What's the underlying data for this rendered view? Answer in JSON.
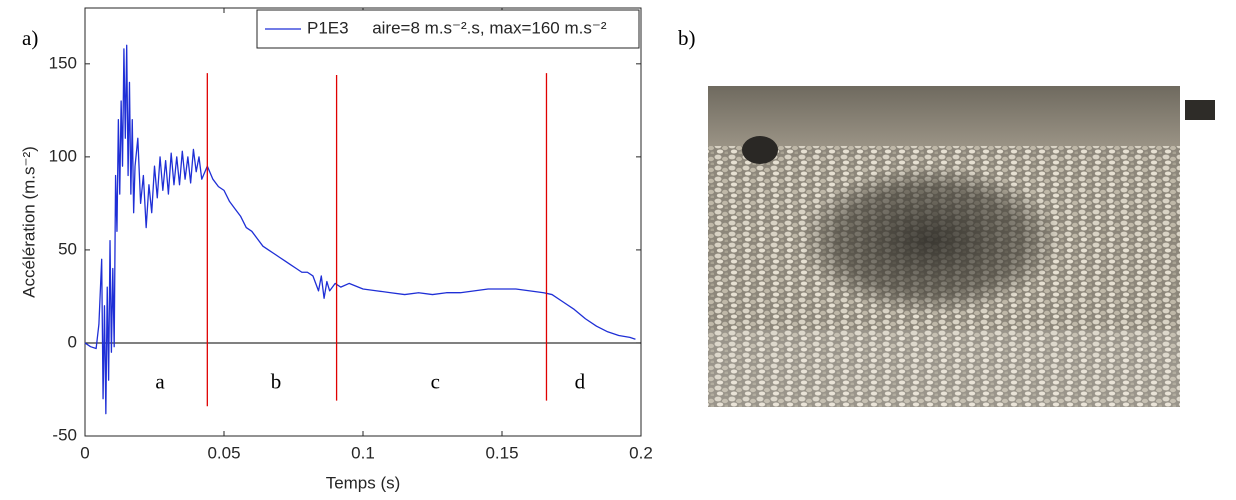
{
  "chart_data": {
    "type": "line",
    "panel_label": "a)",
    "x_label": "Temps (s)",
    "y_label": "Accélération (m.s⁻²)",
    "xlim": [
      0,
      0.2
    ],
    "xticks": [
      0,
      0.05,
      0.1,
      0.15,
      0.2
    ],
    "ylim": [
      -50,
      180
    ],
    "yticks": [
      -50,
      0,
      50,
      100,
      150
    ],
    "legend": "top-right",
    "series": [
      {
        "name": "P1E3     aire=8 m.s⁻².s, max=160 m.s⁻²",
        "color": "#1f2fd6",
        "x": [
          0,
          0.002,
          0.004,
          0.005,
          0.006,
          0.0065,
          0.007,
          0.0075,
          0.008,
          0.0085,
          0.009,
          0.0095,
          0.01,
          0.0105,
          0.011,
          0.0115,
          0.012,
          0.0125,
          0.013,
          0.0135,
          0.014,
          0.0145,
          0.015,
          0.0155,
          0.016,
          0.0165,
          0.017,
          0.0175,
          0.018,
          0.019,
          0.02,
          0.021,
          0.022,
          0.023,
          0.024,
          0.025,
          0.026,
          0.027,
          0.028,
          0.029,
          0.03,
          0.031,
          0.032,
          0.033,
          0.034,
          0.035,
          0.036,
          0.037,
          0.038,
          0.039,
          0.04,
          0.041,
          0.042,
          0.044,
          0.046,
          0.048,
          0.05,
          0.052,
          0.054,
          0.056,
          0.058,
          0.06,
          0.062,
          0.064,
          0.066,
          0.068,
          0.07,
          0.072,
          0.074,
          0.076,
          0.078,
          0.08,
          0.082,
          0.084,
          0.085,
          0.086,
          0.087,
          0.088,
          0.09,
          0.092,
          0.095,
          0.1,
          0.105,
          0.11,
          0.115,
          0.12,
          0.125,
          0.13,
          0.135,
          0.14,
          0.145,
          0.15,
          0.155,
          0.16,
          0.165,
          0.168,
          0.172,
          0.176,
          0.18,
          0.184,
          0.188,
          0.192,
          0.196,
          0.198
        ],
        "values": [
          0,
          -2,
          -3,
          10,
          45,
          -30,
          20,
          -38,
          30,
          -20,
          55,
          -5,
          40,
          -2,
          90,
          60,
          120,
          80,
          130,
          95,
          158,
          110,
          160,
          90,
          140,
          80,
          120,
          70,
          95,
          110,
          75,
          90,
          62,
          85,
          70,
          95,
          78,
          100,
          82,
          98,
          80,
          102,
          85,
          100,
          85,
          103,
          88,
          100,
          86,
          104,
          92,
          100,
          88,
          95,
          88,
          84,
          82,
          76,
          72,
          68,
          62,
          60,
          56,
          52,
          50,
          48,
          46,
          44,
          42,
          40,
          38,
          38,
          36,
          28,
          36,
          24,
          33,
          28,
          32,
          30,
          32,
          29,
          28,
          27,
          26,
          27,
          26,
          27,
          27,
          28,
          29,
          29,
          29,
          28,
          27,
          26,
          22,
          18,
          13,
          9,
          6,
          4,
          3,
          2
        ]
      }
    ],
    "vlines": [
      {
        "color": "#e00000",
        "x": 0.044,
        "y0": -34,
        "y1": 145
      },
      {
        "color": "#e00000",
        "x": 0.0905,
        "y0": -31,
        "y1": 144
      },
      {
        "color": "#e00000",
        "x": 0.166,
        "y0": -31,
        "y1": 145
      }
    ],
    "annotations": [
      {
        "text": "a",
        "x": 0.027,
        "y": -22
      },
      {
        "text": "b",
        "x": 0.0687,
        "y": -22
      },
      {
        "text": "c",
        "x": 0.126,
        "y": -22
      },
      {
        "text": "d",
        "x": 0.178,
        "y": -22
      }
    ]
  },
  "photo": {
    "panel_label": "b)"
  }
}
